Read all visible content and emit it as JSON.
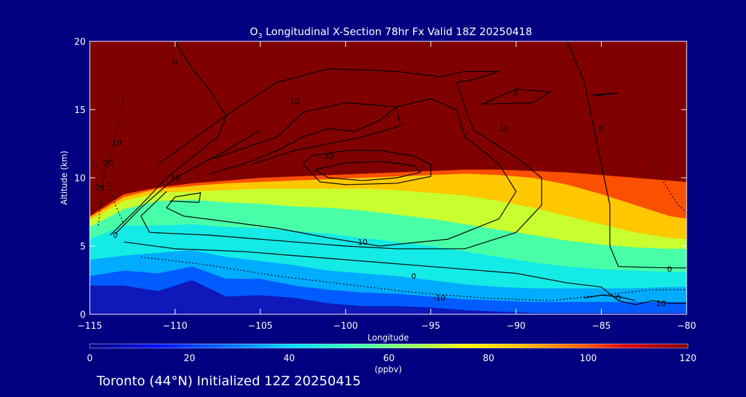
{
  "chart_data": {
    "type": "heatmap",
    "title": {
      "species": "O",
      "subscript": "3",
      "text": " Longitudinal X-Section 78hr  Fx Valid 18Z 20250418"
    },
    "xlabel": "Longitude",
    "ylabel": "Altitude (km)",
    "xlim": [
      -115,
      -80
    ],
    "ylim": [
      0,
      20
    ],
    "x_ticks": [
      -115,
      -110,
      -105,
      -100,
      -95,
      -90,
      -85,
      -80
    ],
    "x_tick_labels": [
      "−115",
      "−110",
      "−105",
      "−100",
      "−95",
      "−90",
      "−85",
      "−80"
    ],
    "y_ticks": [
      0,
      5,
      10,
      15,
      20
    ],
    "y_tick_labels": [
      "0",
      "5",
      "10",
      "15",
      "20"
    ],
    "colorbar": {
      "label": "(ppbv)",
      "range": [
        0,
        120
      ],
      "ticks": [
        0,
        20,
        40,
        60,
        80,
        100,
        120
      ],
      "tick_labels": [
        "0",
        "20",
        "40",
        "60",
        "80",
        "100",
        "120"
      ]
    },
    "fill_levels_ppbv": {
      "x": [
        -115,
        -113,
        -111,
        -109,
        -107,
        -105,
        -103,
        -101,
        -99,
        -97,
        -95,
        -93,
        -91,
        -89,
        -87,
        -85,
        -83,
        -81,
        -80
      ],
      "terrain_km": [
        2.1,
        2.1,
        1.7,
        2.5,
        1.3,
        1.4,
        1.2,
        0.8,
        0.6,
        0.6,
        0.5,
        0.3,
        0.2,
        0.1,
        0.1,
        0.1,
        0.1,
        0.1,
        0.1
      ],
      "bands": [
        {
          "ppbv": 25,
          "top_km": [
            2.8,
            3.2,
            3.0,
            3.5,
            2.6,
            2.6,
            2.1,
            1.8,
            1.6,
            1.5,
            1.3,
            1.1,
            1.0,
            0.9,
            0.9,
            0.9,
            0.9,
            0.9,
            0.9
          ]
        },
        {
          "ppbv": 35,
          "top_km": [
            4.0,
            4.3,
            4.5,
            4.7,
            4.2,
            3.9,
            3.6,
            3.2,
            3.0,
            2.8,
            2.5,
            2.2,
            2.0,
            1.9,
            1.9,
            1.9,
            1.9,
            2.0,
            2.0
          ]
        },
        {
          "ppbv": 45,
          "top_km": [
            5.5,
            6.5,
            6.5,
            6.6,
            6.4,
            6.3,
            6.1,
            5.9,
            5.6,
            5.3,
            5.0,
            4.6,
            4.2,
            3.8,
            3.5,
            3.3,
            3.2,
            3.1,
            3.1
          ]
        },
        {
          "ppbv": 55,
          "top_km": [
            6.4,
            7.7,
            8.3,
            8.4,
            8.2,
            8.1,
            7.9,
            7.8,
            7.6,
            7.3,
            7.0,
            6.6,
            6.2,
            5.8,
            5.4,
            5.1,
            4.9,
            4.8,
            4.8
          ]
        },
        {
          "ppbv": 70,
          "top_km": [
            6.9,
            8.3,
            8.9,
            9.0,
            9.1,
            9.2,
            9.2,
            9.2,
            9.2,
            9.1,
            8.9,
            8.7,
            8.3,
            7.8,
            7.2,
            6.6,
            6.0,
            5.6,
            5.5
          ]
        },
        {
          "ppbv": 85,
          "top_km": [
            7.1,
            8.6,
            9.2,
            9.4,
            9.6,
            9.7,
            9.8,
            9.9,
            10.0,
            10.1,
            10.2,
            10.3,
            10.2,
            10.0,
            9.5,
            8.8,
            8.0,
            7.2,
            7.0
          ]
        },
        {
          "ppbv": 100,
          "top_km": [
            7.2,
            8.8,
            9.3,
            9.6,
            9.8,
            10.0,
            10.1,
            10.2,
            10.3,
            10.4,
            10.5,
            10.6,
            10.6,
            10.5,
            10.4,
            10.2,
            10.0,
            9.8,
            9.7
          ]
        },
        {
          "ppbv": 120,
          "top_km": [
            20,
            20,
            20,
            20,
            20,
            20,
            20,
            20,
            20,
            20,
            20,
            20,
            20,
            20,
            20,
            20,
            20,
            20,
            20
          ]
        }
      ]
    },
    "contours": [
      {
        "value": "20",
        "style": "solid",
        "points": [
          [
            -101.8,
            10.6
          ],
          [
            -101.0,
            10.0
          ],
          [
            -99.0,
            9.8
          ],
          [
            -97.0,
            10.0
          ],
          [
            -95.6,
            10.4
          ],
          [
            -96.0,
            10.9
          ],
          [
            -98.0,
            11.2
          ],
          [
            -100.0,
            11.1
          ],
          [
            -101.8,
            10.6
          ]
        ]
      },
      {
        "value": "20",
        "style": "solid",
        "points": [
          [
            -102.5,
            11.0
          ],
          [
            -101.5,
            9.7
          ],
          [
            -100.0,
            9.5
          ],
          [
            -97.0,
            9.6
          ],
          [
            -95.0,
            10.1
          ],
          [
            -95.0,
            11.0
          ],
          [
            -96.0,
            11.6
          ],
          [
            -98.0,
            12.0
          ],
          [
            -100.0,
            12.0
          ],
          [
            -102.0,
            11.6
          ],
          [
            -102.5,
            11.0
          ]
        ]
      },
      {
        "value": "10",
        "style": "solid",
        "points": [
          [
            -108.0,
            10.3
          ],
          [
            -106.0,
            11.0
          ],
          [
            -104.0,
            12.0
          ],
          [
            -102.5,
            13.0
          ],
          [
            -101.0,
            13.6
          ],
          [
            -99.5,
            13.4
          ],
          [
            -98.0,
            14.2
          ],
          [
            -97.0,
            15.2
          ],
          [
            -95.0,
            15.8
          ],
          [
            -93.5,
            15.0
          ],
          [
            -93.0,
            13.0
          ],
          [
            -91.0,
            11.0
          ],
          [
            -90.0,
            9.0
          ],
          [
            -91.0,
            7.0
          ],
          [
            -94.0,
            5.5
          ],
          [
            -98.0,
            5.0
          ],
          [
            -101.0,
            5.6
          ],
          [
            -104.0,
            6.3
          ],
          [
            -107.0,
            6.8
          ],
          [
            -109.5,
            7.2
          ],
          [
            -110.5,
            7.8
          ],
          [
            -110.0,
            8.6
          ],
          [
            -108.5,
            8.9
          ],
          [
            -108.6,
            8.2
          ],
          [
            -110.3,
            8.3
          ]
        ]
      },
      {
        "value": "10",
        "style": "solid",
        "points": [
          [
            -107.8,
            11.4
          ],
          [
            -104.0,
            13.0
          ],
          [
            -102.5,
            14.8
          ],
          [
            -100.0,
            15.5
          ],
          [
            -97.0,
            15.2
          ],
          [
            -96.8,
            13.8
          ],
          [
            -99.0,
            13.0
          ],
          [
            -103.0,
            12.0
          ],
          [
            -105.5,
            11.0
          ]
        ]
      },
      {
        "value": "10",
        "style": "solid",
        "points": [
          [
            -111.0,
            11.0
          ],
          [
            -109.0,
            12.8
          ],
          [
            -106.5,
            15.0
          ],
          [
            -104.0,
            17.0
          ],
          [
            -101.0,
            18.0
          ],
          [
            -97.0,
            17.8
          ],
          [
            -94.5,
            17.4
          ],
          [
            -93.0,
            17.8
          ],
          [
            -91.0,
            17.8
          ],
          [
            -92.5,
            17.2
          ],
          [
            -93.5,
            17.0
          ],
          [
            -92.5,
            13.5
          ],
          [
            -90.0,
            11.5
          ],
          [
            -88.5,
            10.0
          ],
          [
            -88.5,
            8.0
          ],
          [
            -90.0,
            6.0
          ],
          [
            -93.0,
            4.8
          ],
          [
            -97.0,
            4.8
          ],
          [
            -100.0,
            5.0
          ],
          [
            -104.0,
            5.4
          ],
          [
            -108.0,
            5.8
          ],
          [
            -111.5,
            6.0
          ],
          [
            -112.0,
            7.2
          ],
          [
            -110.5,
            9.0
          ]
        ]
      },
      {
        "value": "10",
        "style": "solid",
        "points": [
          [
            -113.5,
            5.9
          ],
          [
            -112.0,
            7.8
          ],
          [
            -110.0,
            10.0
          ],
          [
            -107.0,
            12.0
          ],
          [
            -105.0,
            13.5
          ]
        ]
      },
      {
        "value": "10",
        "style": "solid",
        "points": [
          [
            -89.0,
            15.5
          ],
          [
            -92.0,
            15.4
          ],
          [
            -90.0,
            16.5
          ],
          [
            -88.0,
            16.3
          ],
          [
            -89.0,
            15.5
          ]
        ]
      },
      {
        "value": "10",
        "style": "solid",
        "points": [
          [
            -85.5,
            16.1
          ],
          [
            -84.0,
            16.2
          ],
          [
            -85.5,
            16.0
          ]
        ]
      },
      {
        "value": "0",
        "style": "solid",
        "points": [
          [
            -113.8,
            5.8
          ],
          [
            -112.0,
            8.0
          ],
          [
            -110.5,
            10.0
          ],
          [
            -109.0,
            11.5
          ],
          [
            -107.5,
            13.0
          ],
          [
            -107.0,
            14.5
          ],
          [
            -108.0,
            16.5
          ],
          [
            -109.0,
            18.0
          ],
          [
            -110.0,
            20.0
          ]
        ]
      },
      {
        "value": "0",
        "style": "solid",
        "points": [
          [
            -87.0,
            20.0
          ],
          [
            -86.0,
            17.0
          ],
          [
            -85.5,
            14.0
          ],
          [
            -85.0,
            11.0
          ],
          [
            -84.5,
            8.0
          ],
          [
            -84.5,
            5.0
          ],
          [
            -84.0,
            3.5
          ],
          [
            -81.0,
            3.4
          ],
          [
            -80.0,
            3.4
          ]
        ]
      },
      {
        "value": "0",
        "style": "solid",
        "points": [
          [
            -113.0,
            5.3
          ],
          [
            -110.0,
            4.8
          ],
          [
            -106.0,
            4.6
          ],
          [
            -102.0,
            4.2
          ],
          [
            -98.0,
            3.8
          ],
          [
            -94.0,
            3.4
          ],
          [
            -90.0,
            3.0
          ],
          [
            -87.0,
            2.3
          ],
          [
            -85.0,
            2.0
          ],
          [
            -84.0,
            1.0
          ],
          [
            -83.0,
            0.7
          ],
          [
            -82.0,
            1.0
          ],
          [
            -81.0,
            0.8
          ],
          [
            -80.0,
            0.8
          ]
        ]
      },
      {
        "value": "0",
        "style": "solid",
        "points": [
          [
            -86.0,
            1.2
          ],
          [
            -85.0,
            1.4
          ],
          [
            -84.0,
            1.3
          ],
          [
            -83.0,
            1.0
          ]
        ]
      },
      {
        "value": "-10",
        "style": "dashed",
        "points": [
          [
            -112.0,
            4.2
          ],
          [
            -108.0,
            3.6
          ],
          [
            -104.0,
            2.8
          ],
          [
            -100.0,
            2.2
          ],
          [
            -96.0,
            1.6
          ],
          [
            -92.0,
            1.2
          ],
          [
            -88.0,
            1.0
          ],
          [
            -85.0,
            1.4
          ],
          [
            -82.0,
            1.8
          ],
          [
            -80.0,
            1.8
          ]
        ]
      },
      {
        "value": "-10",
        "style": "dashed",
        "points": [
          [
            -113.0,
            16.0
          ],
          [
            -113.5,
            13.0
          ],
          [
            -114.2,
            10.0
          ],
          [
            -114.5,
            6.5
          ]
        ]
      },
      {
        "value": "-10",
        "style": "dashed",
        "points": [
          [
            -115.0,
            11.5
          ],
          [
            -114.0,
            10.0
          ],
          [
            -113.5,
            8.0
          ],
          [
            -113.0,
            6.6
          ]
        ]
      },
      {
        "value": "-10",
        "style": "dashed",
        "points": [
          [
            -82.0,
            11.0
          ],
          [
            -81.0,
            9.0
          ],
          [
            -80.5,
            8.0
          ],
          [
            -80.0,
            7.5
          ]
        ]
      }
    ],
    "contour_labels": [
      {
        "text": "0",
        "x": -110.0,
        "y": 18.5
      },
      {
        "text": "10",
        "x": -103.0,
        "y": 15.6
      },
      {
        "text": "-10",
        "x": -113.5,
        "y": 12.6
      },
      {
        "text": "-20",
        "x": -114.0,
        "y": 11.1
      },
      {
        "text": "-20",
        "x": -114.5,
        "y": 9.3
      },
      {
        "text": "20",
        "x": -101.0,
        "y": 11.6
      },
      {
        "text": "10",
        "x": -110.0,
        "y": 10.0
      },
      {
        "text": "0",
        "x": -113.5,
        "y": 5.8
      },
      {
        "text": "10",
        "x": -99.0,
        "y": 5.3
      },
      {
        "text": "0",
        "x": -96.0,
        "y": 2.8
      },
      {
        "text": "-10",
        "x": -94.5,
        "y": 1.2
      },
      {
        "text": "0",
        "x": -90.0,
        "y": 16.2
      },
      {
        "text": "10",
        "x": -90.7,
        "y": 13.6
      },
      {
        "text": "0",
        "x": -85.0,
        "y": 13.6
      },
      {
        "text": "0",
        "x": -81.0,
        "y": 3.3
      },
      {
        "text": "0",
        "x": -84.0,
        "y": 1.2
      },
      {
        "text": "10",
        "x": -81.5,
        "y": 0.8
      }
    ],
    "colors": {
      "background": "#000080",
      "foreground": "#ffffff",
      "terrain": "#0f18b8",
      "contour": "#000000"
    }
  },
  "footer": "Toronto (44°N) Initialized 12Z 20250415"
}
